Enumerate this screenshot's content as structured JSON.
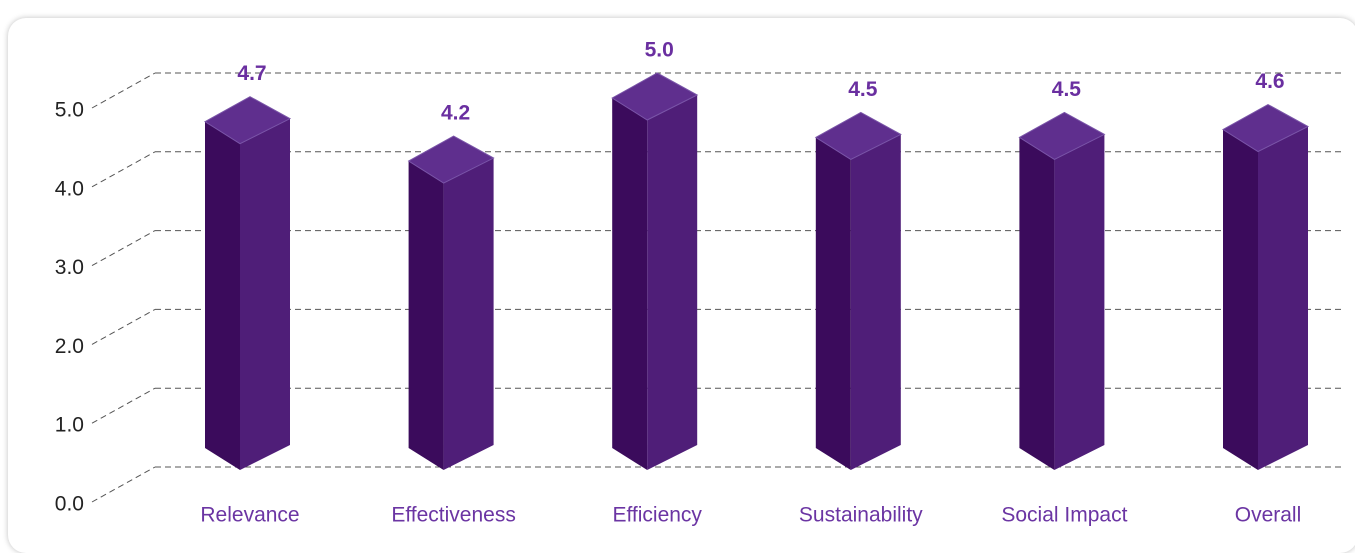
{
  "chart_data": {
    "type": "bar3d",
    "categories": [
      "Relevance",
      "Effectiveness",
      "Efficiency",
      "Sustainability",
      "Social Impact",
      "Overall"
    ],
    "values": [
      4.7,
      4.2,
      5.0,
      4.5,
      4.5,
      4.6
    ],
    "value_labels": [
      "4.7",
      "4.2",
      "5.0",
      "4.5",
      "4.5",
      "4.6"
    ],
    "colors": {
      "left": "#3b0b5c",
      "right": "#4f1e78",
      "top": "#5f2f8e"
    },
    "ylim": [
      0,
      5
    ],
    "yticks": [
      {
        "value": 0,
        "label": "0.0"
      },
      {
        "value": 1,
        "label": "1.0"
      },
      {
        "value": 2,
        "label": "2.0"
      },
      {
        "value": 3,
        "label": "3.0"
      },
      {
        "value": 4,
        "label": "4.0"
      },
      {
        "value": 5,
        "label": "5.0"
      }
    ],
    "grid": true
  }
}
